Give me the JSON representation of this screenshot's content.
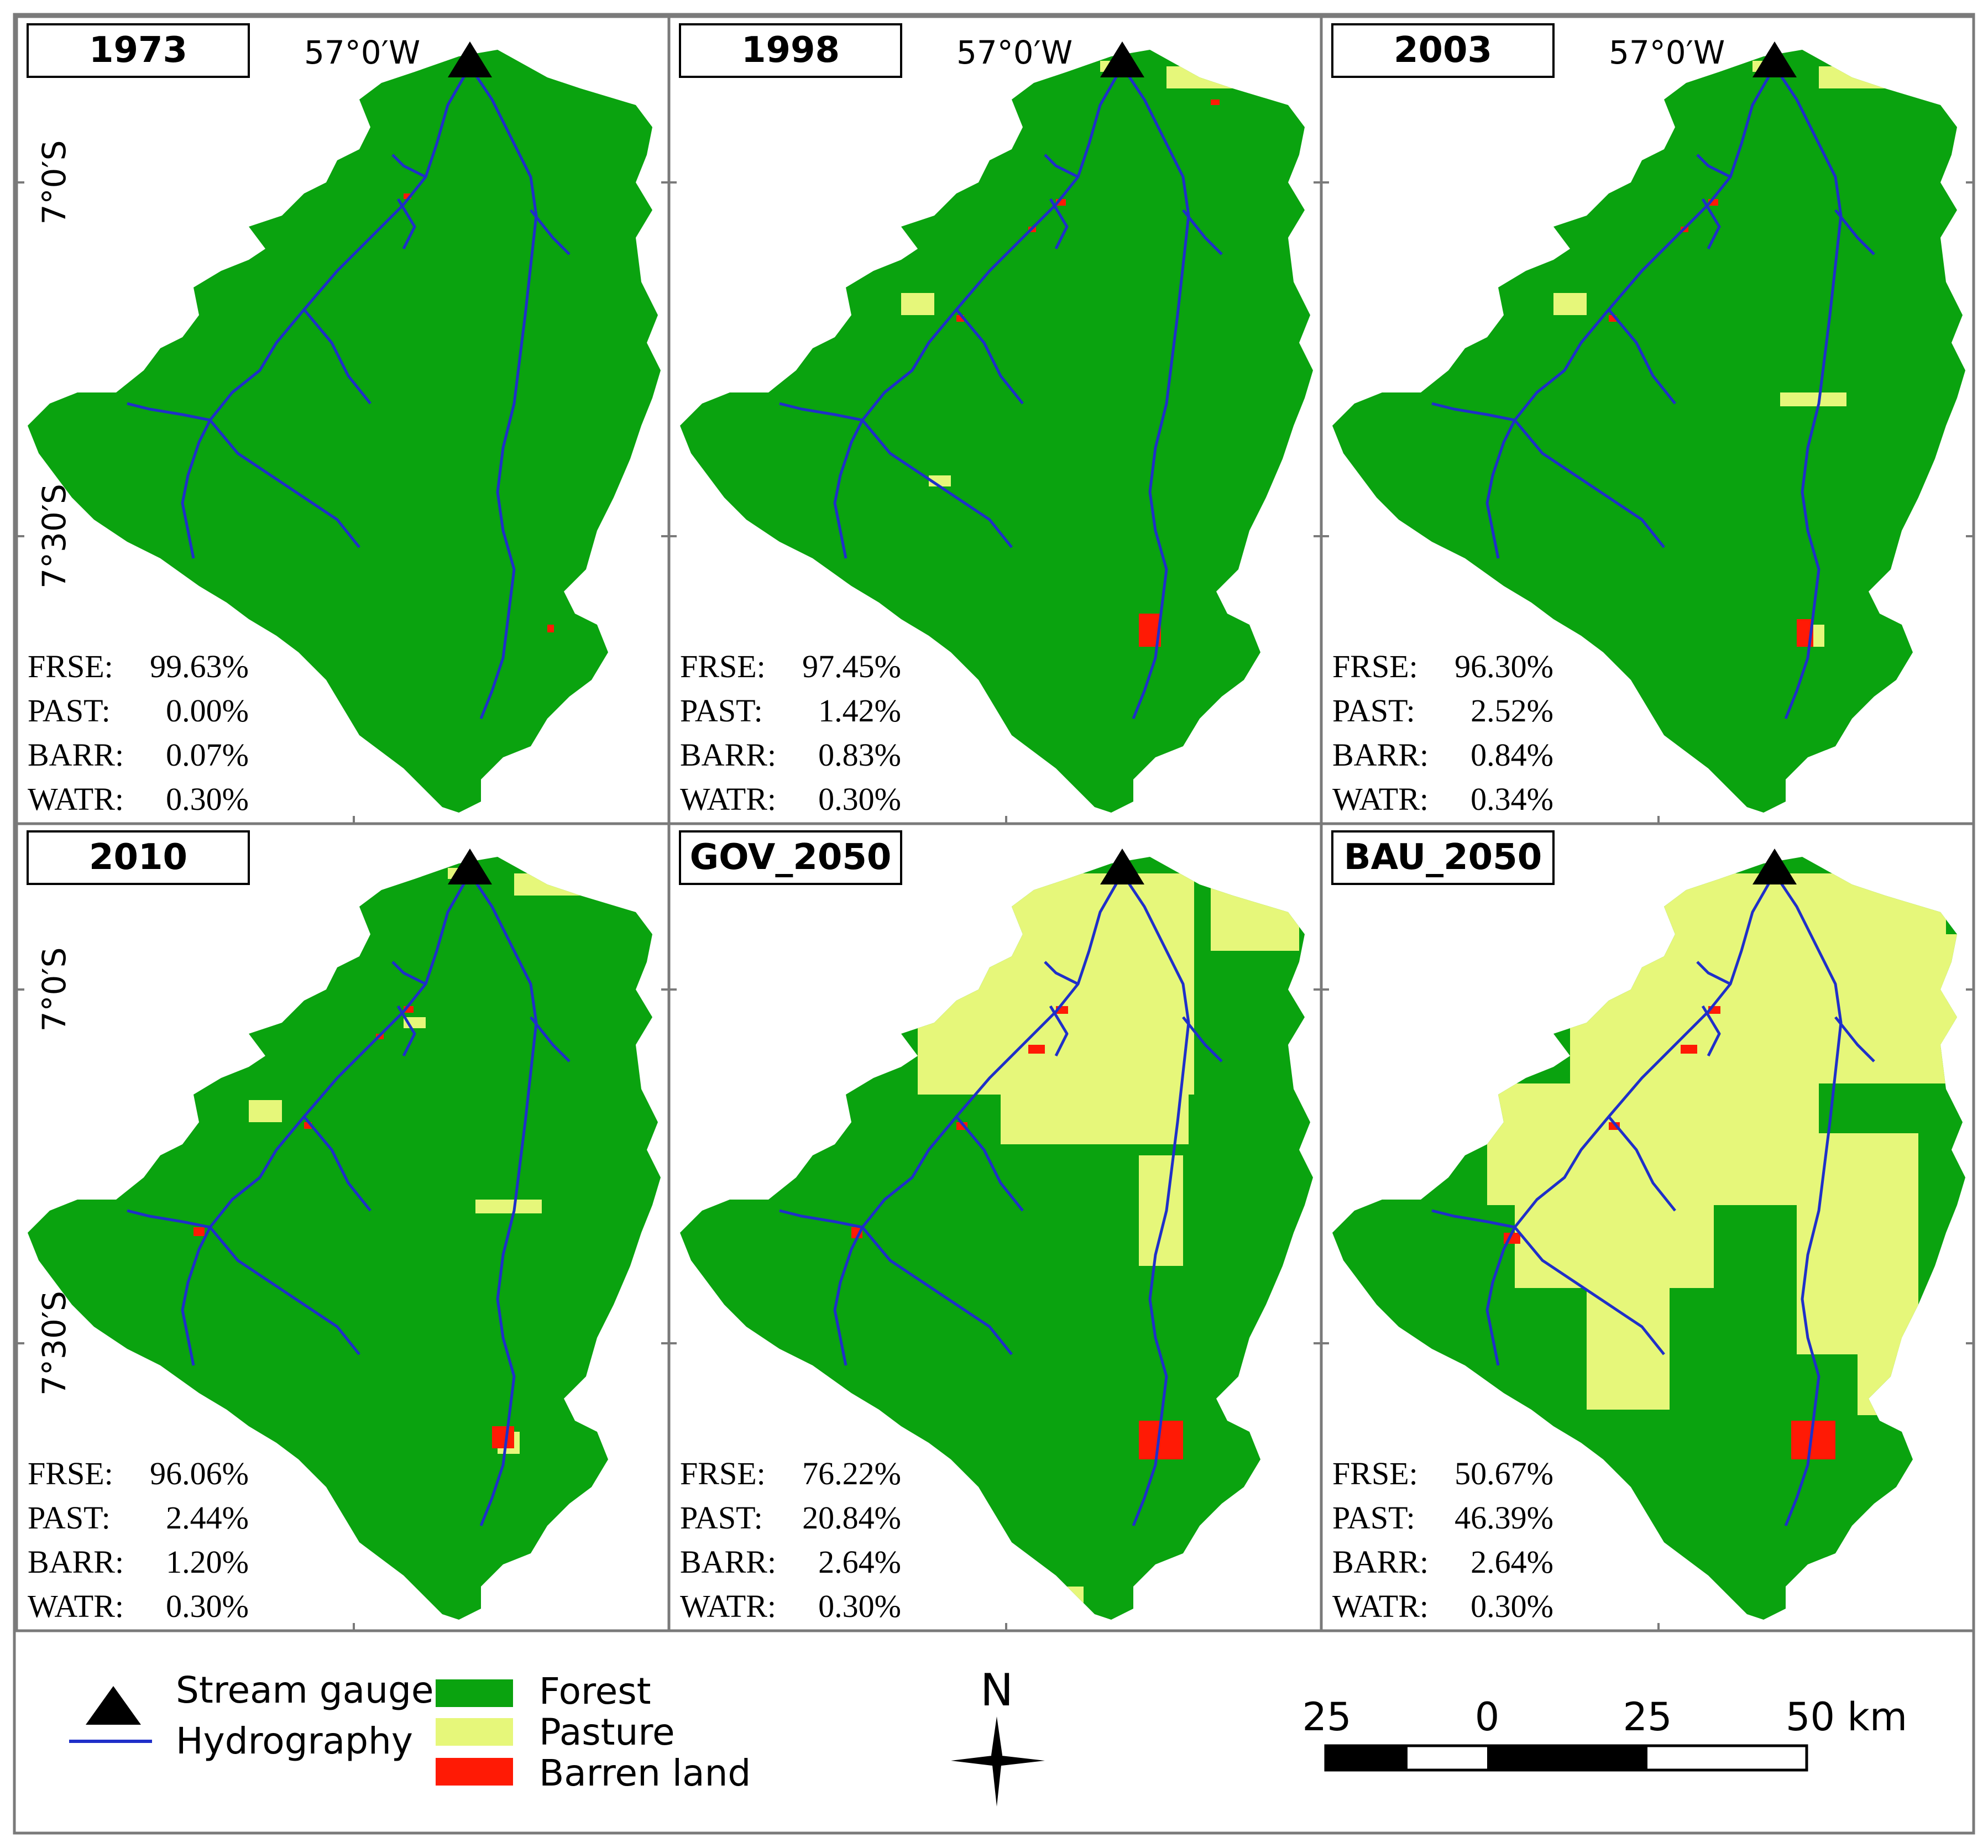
{
  "panels": [
    {
      "title": "1973",
      "show_lon": true,
      "show_lat": true,
      "stats": [
        {
          "code": "FRSE:",
          "value": "99.63%"
        },
        {
          "code": "PAST:",
          "value": "0.00%"
        },
        {
          "code": "BARR:",
          "value": "0.07%"
        },
        {
          "code": "WATR:",
          "value": "0.30%"
        }
      ]
    },
    {
      "title": "1998",
      "show_lon": true,
      "show_lat": false,
      "stats": [
        {
          "code": "FRSE:",
          "value": "97.45%"
        },
        {
          "code": "PAST:",
          "value": "1.42%"
        },
        {
          "code": "BARR:",
          "value": "0.83%"
        },
        {
          "code": "WATR:",
          "value": "0.30%"
        }
      ]
    },
    {
      "title": "2003",
      "show_lon": true,
      "show_lat": false,
      "stats": [
        {
          "code": "FRSE:",
          "value": "96.30%"
        },
        {
          "code": "PAST:",
          "value": "2.52%"
        },
        {
          "code": "BARR:",
          "value": "0.84%"
        },
        {
          "code": "WATR:",
          "value": "0.34%"
        }
      ]
    },
    {
      "title": "2010",
      "show_lon": false,
      "show_lat": true,
      "stats": [
        {
          "code": "FRSE:",
          "value": "96.06%"
        },
        {
          "code": "PAST:",
          "value": "2.44%"
        },
        {
          "code": "BARR:",
          "value": "1.20%"
        },
        {
          "code": "WATR:",
          "value": "0.30%"
        }
      ]
    },
    {
      "title": "GOV_2050",
      "show_lon": false,
      "show_lat": false,
      "stats": [
        {
          "code": "FRSE:",
          "value": "76.22%"
        },
        {
          "code": "PAST:",
          "value": "20.84%"
        },
        {
          "code": "BARR:",
          "value": "2.64%"
        },
        {
          "code": "WATR:",
          "value": "0.30%"
        }
      ]
    },
    {
      "title": "BAU_2050",
      "show_lon": false,
      "show_lat": false,
      "stats": [
        {
          "code": "FRSE:",
          "value": "50.67%"
        },
        {
          "code": "PAST:",
          "value": "46.39%"
        },
        {
          "code": "BARR:",
          "value": "2.64%"
        },
        {
          "code": "WATR:",
          "value": "0.30%"
        }
      ]
    }
  ],
  "graticule": {
    "lon": "57°0′W",
    "lat_upper": "7°0′S",
    "lat_lower": "7°30′S"
  },
  "legend": {
    "stream_gauge": "Stream gauge",
    "hydrography": "Hydrography",
    "forest": "Forest",
    "pasture": "Pasture",
    "barren": "Barren land"
  },
  "north_arrow": "N",
  "scale_bar": {
    "labels": [
      "25",
      "0",
      "25",
      "50 km"
    ]
  },
  "colors": {
    "forest": "#0aa30f",
    "pasture": "#e6f77a",
    "barren": "#ff1a05",
    "river": "#1f2fc9",
    "frame": "#7a7a7a"
  }
}
